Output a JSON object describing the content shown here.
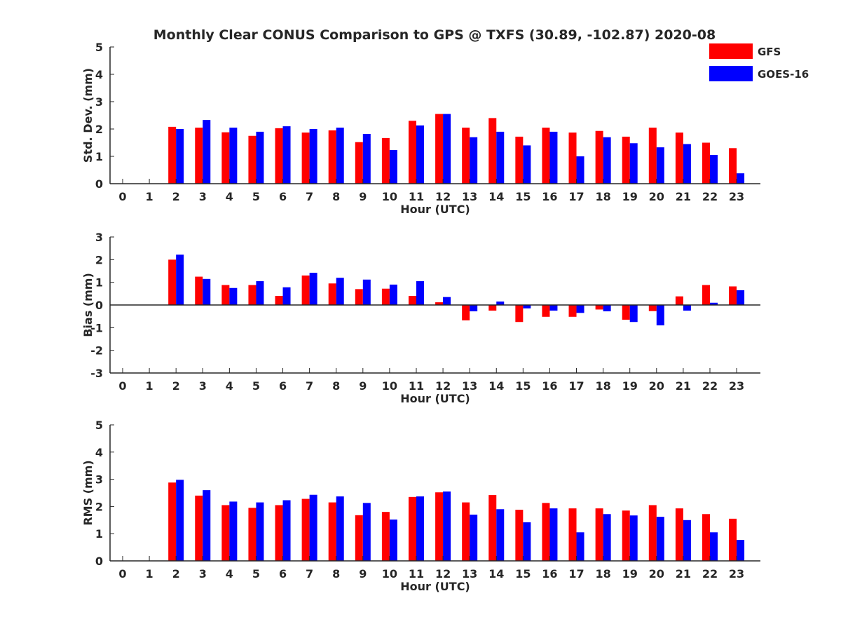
{
  "title": "Monthly Clear CONUS Comparison to GPS @ TXFS (30.89, -102.87) 2020-08",
  "legend": {
    "placement": "top-right",
    "entries": [
      {
        "name": "GFS",
        "color": "#ff0000"
      },
      {
        "name": "GOES-16",
        "color": "#0000ff"
      }
    ]
  },
  "chart_data": [
    {
      "type": "bar",
      "xlabel": "Hour (UTC)",
      "ylabel": "Std. Dev. (mm)",
      "ylim": [
        0,
        5
      ],
      "yticks": [
        0,
        1,
        2,
        3,
        4,
        5
      ],
      "categories": [
        "0",
        "1",
        "2",
        "3",
        "4",
        "5",
        "6",
        "7",
        "8",
        "9",
        "10",
        "11",
        "12",
        "13",
        "14",
        "15",
        "16",
        "17",
        "18",
        "19",
        "20",
        "21",
        "22",
        "23"
      ],
      "series": [
        {
          "name": "GFS",
          "color": "#ff0000",
          "values": [
            null,
            null,
            2.08,
            2.05,
            1.88,
            1.75,
            2.03,
            1.87,
            1.95,
            1.52,
            1.67,
            2.3,
            2.55,
            2.05,
            2.4,
            1.72,
            2.05,
            1.87,
            1.93,
            1.72,
            2.05,
            1.87,
            1.5,
            1.3
          ]
        },
        {
          "name": "GOES-16",
          "color": "#0000ff",
          "values": [
            null,
            null,
            2.0,
            2.33,
            2.05,
            1.9,
            2.1,
            2.0,
            2.05,
            1.82,
            1.23,
            2.13,
            2.55,
            1.7,
            1.9,
            1.4,
            1.9,
            1.0,
            1.7,
            1.48,
            1.33,
            1.45,
            1.05,
            0.38
          ]
        }
      ]
    },
    {
      "type": "bar",
      "xlabel": "Hour (UTC)",
      "ylabel": "Bias (mm)",
      "ylim": [
        -3,
        3
      ],
      "yticks": [
        -3,
        -2,
        -1,
        0,
        1,
        2,
        3
      ],
      "categories": [
        "0",
        "1",
        "2",
        "3",
        "4",
        "5",
        "6",
        "7",
        "8",
        "9",
        "10",
        "11",
        "12",
        "13",
        "14",
        "15",
        "16",
        "17",
        "18",
        "19",
        "20",
        "21",
        "22",
        "23"
      ],
      "series": [
        {
          "name": "GFS",
          "color": "#ff0000",
          "values": [
            null,
            null,
            2.0,
            1.25,
            0.88,
            0.88,
            0.4,
            1.3,
            0.95,
            0.7,
            0.72,
            0.4,
            0.12,
            -0.68,
            -0.25,
            -0.75,
            -0.52,
            -0.52,
            -0.2,
            -0.65,
            -0.27,
            0.38,
            0.88,
            0.82
          ]
        },
        {
          "name": "GOES-16",
          "color": "#0000ff",
          "values": [
            null,
            null,
            2.22,
            1.15,
            0.75,
            1.05,
            0.78,
            1.42,
            1.2,
            1.12,
            0.9,
            1.05,
            0.35,
            -0.28,
            0.15,
            -0.15,
            -0.25,
            -0.35,
            -0.28,
            -0.75,
            -0.9,
            -0.25,
            0.1,
            0.65
          ]
        }
      ]
    },
    {
      "type": "bar",
      "xlabel": "Hour (UTC)",
      "ylabel": "RMS (mm)",
      "ylim": [
        0,
        5
      ],
      "yticks": [
        0,
        1,
        2,
        3,
        4,
        5
      ],
      "categories": [
        "0",
        "1",
        "2",
        "3",
        "4",
        "5",
        "6",
        "7",
        "8",
        "9",
        "10",
        "11",
        "12",
        "13",
        "14",
        "15",
        "16",
        "17",
        "18",
        "19",
        "20",
        "21",
        "22",
        "23"
      ],
      "series": [
        {
          "name": "GFS",
          "color": "#ff0000",
          "values": [
            null,
            null,
            2.88,
            2.4,
            2.05,
            1.95,
            2.05,
            2.28,
            2.15,
            1.68,
            1.8,
            2.35,
            2.52,
            2.15,
            2.42,
            1.88,
            2.13,
            1.93,
            1.93,
            1.85,
            2.05,
            1.93,
            1.72,
            1.55
          ]
        },
        {
          "name": "GOES-16",
          "color": "#0000ff",
          "values": [
            null,
            null,
            2.98,
            2.6,
            2.18,
            2.15,
            2.23,
            2.43,
            2.37,
            2.13,
            1.52,
            2.37,
            2.55,
            1.7,
            1.9,
            1.42,
            1.93,
            1.05,
            1.72,
            1.67,
            1.62,
            1.5,
            1.05,
            0.77
          ]
        }
      ]
    }
  ]
}
